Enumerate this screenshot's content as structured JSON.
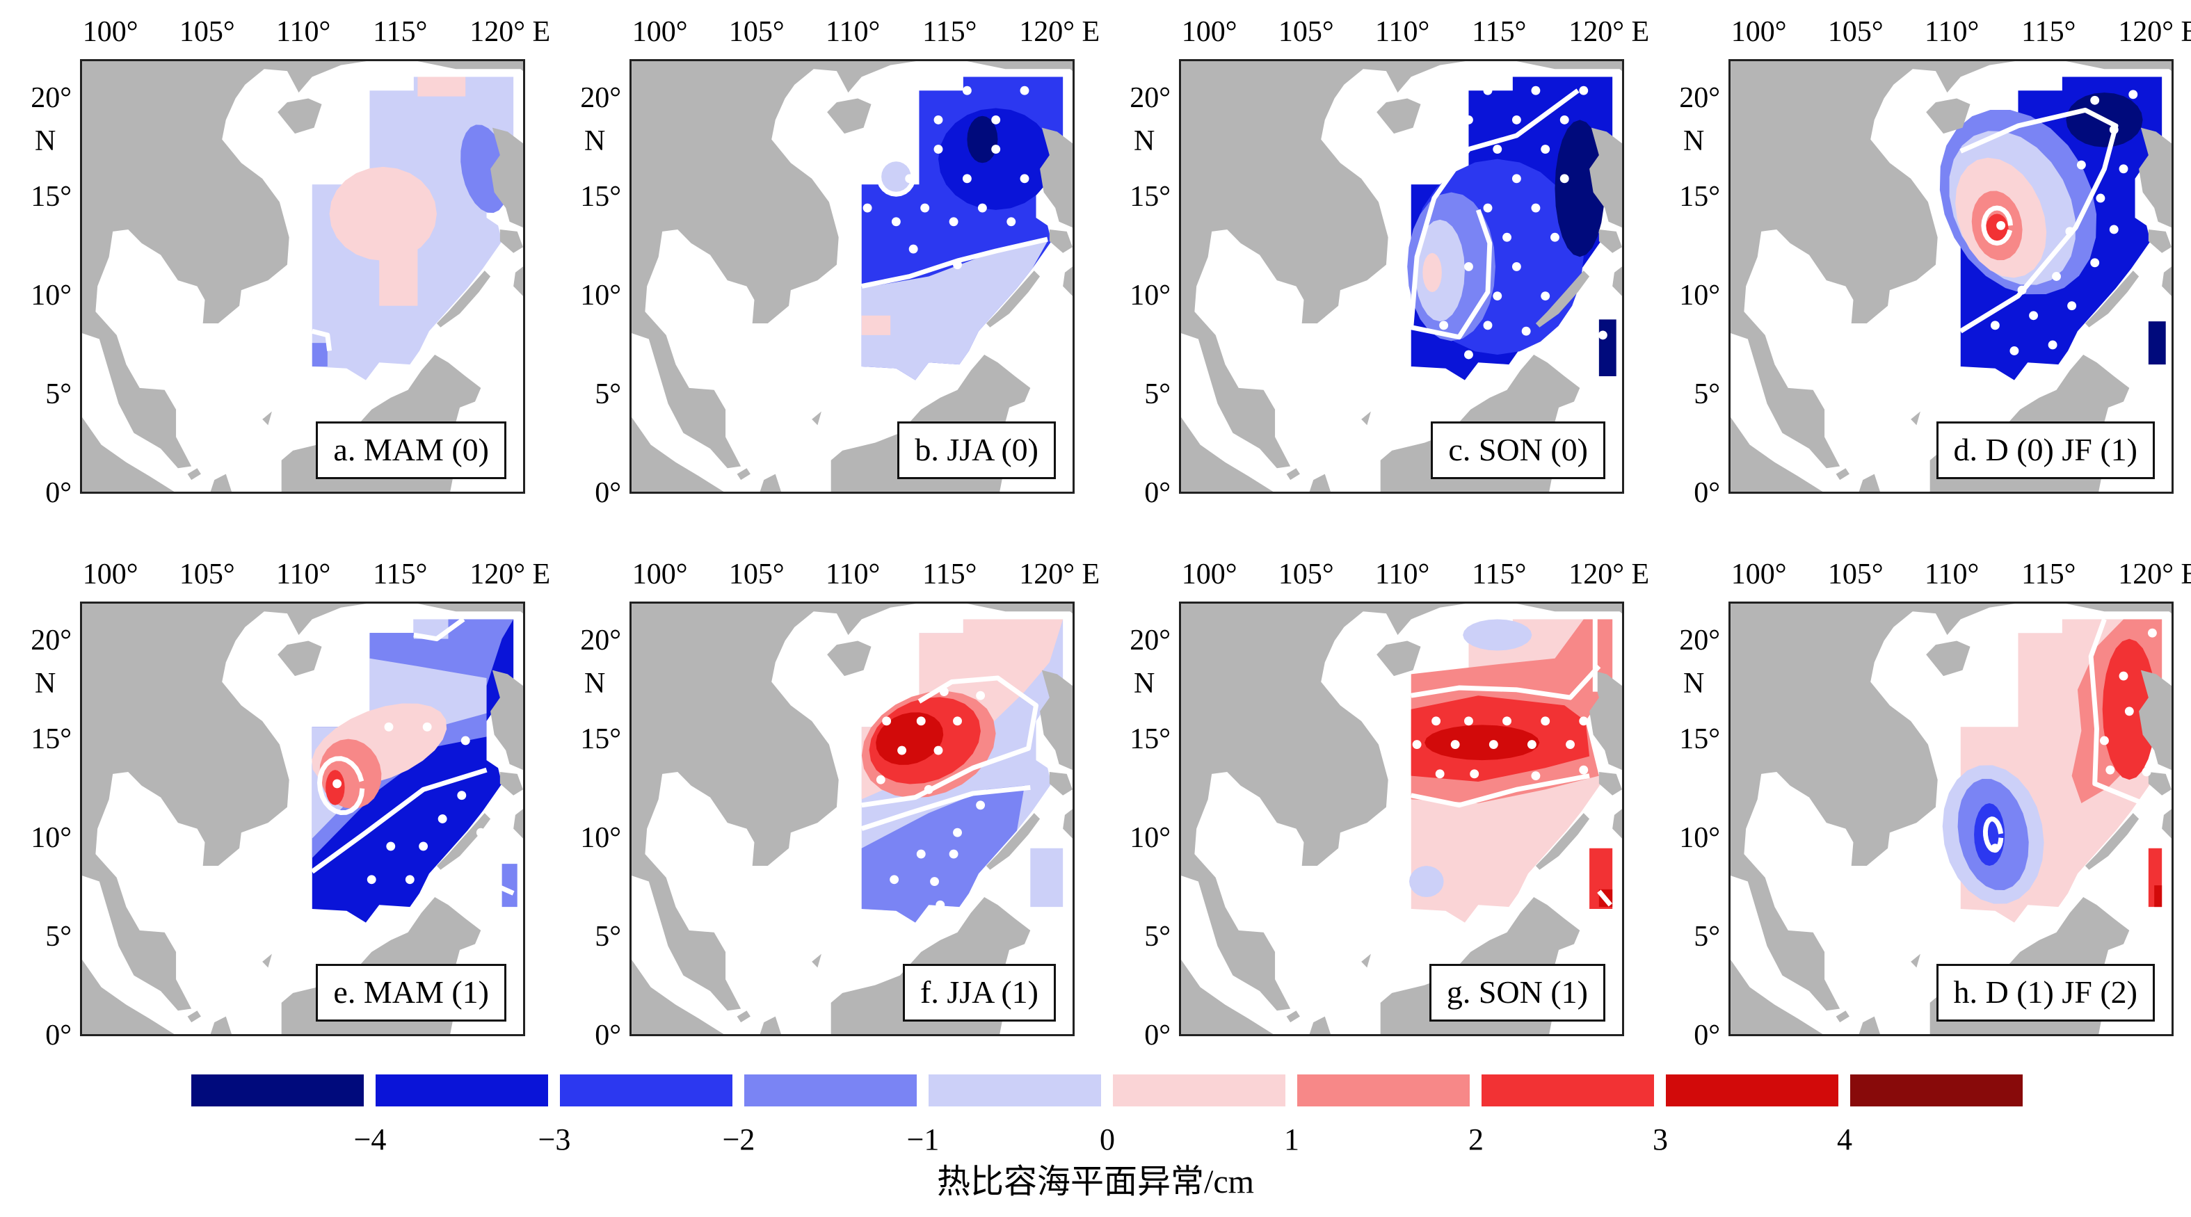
{
  "lon_labels": [
    "100°",
    "105°",
    "110°",
    "115°",
    "120° E"
  ],
  "lat_labels": [
    "20°",
    "15°",
    "10°",
    "5°",
    "0°"
  ],
  "lat_unit": "N",
  "panels": [
    {
      "label": "a. MAM (0)",
      "style": "weak-neg"
    },
    {
      "label": "b. JJA (0)",
      "style": "strong-neg-north"
    },
    {
      "label": "c. SON (0)",
      "style": "strong-neg"
    },
    {
      "label": "d. D (0) JF (1)",
      "style": "neg-with-pos-core"
    },
    {
      "label": "e. MAM (1)",
      "style": "pos-northwest"
    },
    {
      "label": "f. JJA (1)",
      "style": "pos-west"
    },
    {
      "label": "g. SON (1)",
      "style": "pos-band"
    },
    {
      "label": "h. D (1) JF (2)",
      "style": "pos-east"
    }
  ],
  "colorbar": {
    "colors": [
      "#000a7c",
      "#0a14d8",
      "#2c38f0",
      "#7a84f4",
      "#ccd0f8",
      "#fad4d6",
      "#f78888",
      "#f23234",
      "#d20a0a",
      "#880a0a"
    ],
    "ticks": [
      "−4",
      "−3",
      "−2",
      "−1",
      "0",
      "1",
      "2",
      "3",
      "4"
    ],
    "title": "热比容海平面异常/cm"
  }
}
